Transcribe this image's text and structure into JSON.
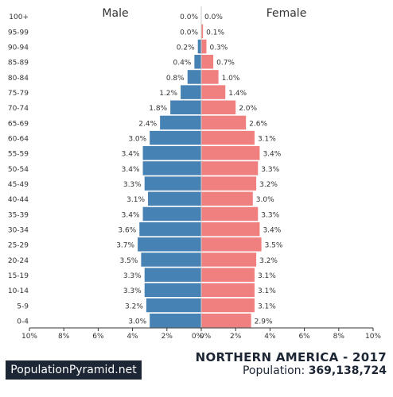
{
  "chart_data": {
    "type": "bar",
    "subtype": "population-pyramid",
    "categories": [
      "100+",
      "95-99",
      "90-94",
      "85-89",
      "80-84",
      "75-79",
      "70-74",
      "65-69",
      "60-64",
      "55-59",
      "50-54",
      "45-49",
      "40-44",
      "35-39",
      "30-34",
      "25-29",
      "20-24",
      "15-19",
      "10-14",
      "5-9",
      "0-4"
    ],
    "series": [
      {
        "name": "Male",
        "color": "#4682b4",
        "values": [
          0.0,
          0.0,
          0.2,
          0.4,
          0.8,
          1.2,
          1.8,
          2.4,
          3.0,
          3.4,
          3.4,
          3.3,
          3.1,
          3.4,
          3.6,
          3.7,
          3.5,
          3.3,
          3.3,
          3.2,
          3.0
        ]
      },
      {
        "name": "Female",
        "color": "#f08080",
        "values": [
          0.0,
          0.1,
          0.3,
          0.7,
          1.0,
          1.4,
          2.0,
          2.6,
          3.1,
          3.4,
          3.3,
          3.2,
          3.0,
          3.3,
          3.4,
          3.5,
          3.2,
          3.1,
          3.1,
          3.1,
          2.9
        ]
      }
    ],
    "value_labels": {
      "male": [
        "0.0%",
        "0.0%",
        "0.2%",
        "0.4%",
        "0.8%",
        "1.2%",
        "1.8%",
        "2.4%",
        "3.0%",
        "3.4%",
        "3.4%",
        "3.3%",
        "3.1%",
        "3.4%",
        "3.6%",
        "3.7%",
        "3.5%",
        "3.3%",
        "3.3%",
        "3.2%",
        "3.0%"
      ],
      "female": [
        "0.0%",
        "0.1%",
        "0.3%",
        "0.7%",
        "1.0%",
        "1.4%",
        "2.0%",
        "2.6%",
        "3.1%",
        "3.4%",
        "3.3%",
        "3.2%",
        "3.0%",
        "3.3%",
        "3.4%",
        "3.5%",
        "3.2%",
        "3.1%",
        "3.1%",
        "3.1%",
        "2.9%"
      ]
    },
    "x_ticks": [
      "10%",
      "8%",
      "6%",
      "4%",
      "2%",
      "0%",
      "0%",
      "2%",
      "4%",
      "6%",
      "8%",
      "10%"
    ],
    "xlim": [
      -10,
      10
    ],
    "grid": false,
    "legend": "side labels (Male left, Female right)"
  },
  "header": {
    "male_label": "Male",
    "female_label": "Female"
  },
  "footer": {
    "brand": "PopulationPyramid.net",
    "title": "NORTHERN AMERICA - 2017",
    "population_label": "Population:",
    "population_value": "369,138,724"
  }
}
